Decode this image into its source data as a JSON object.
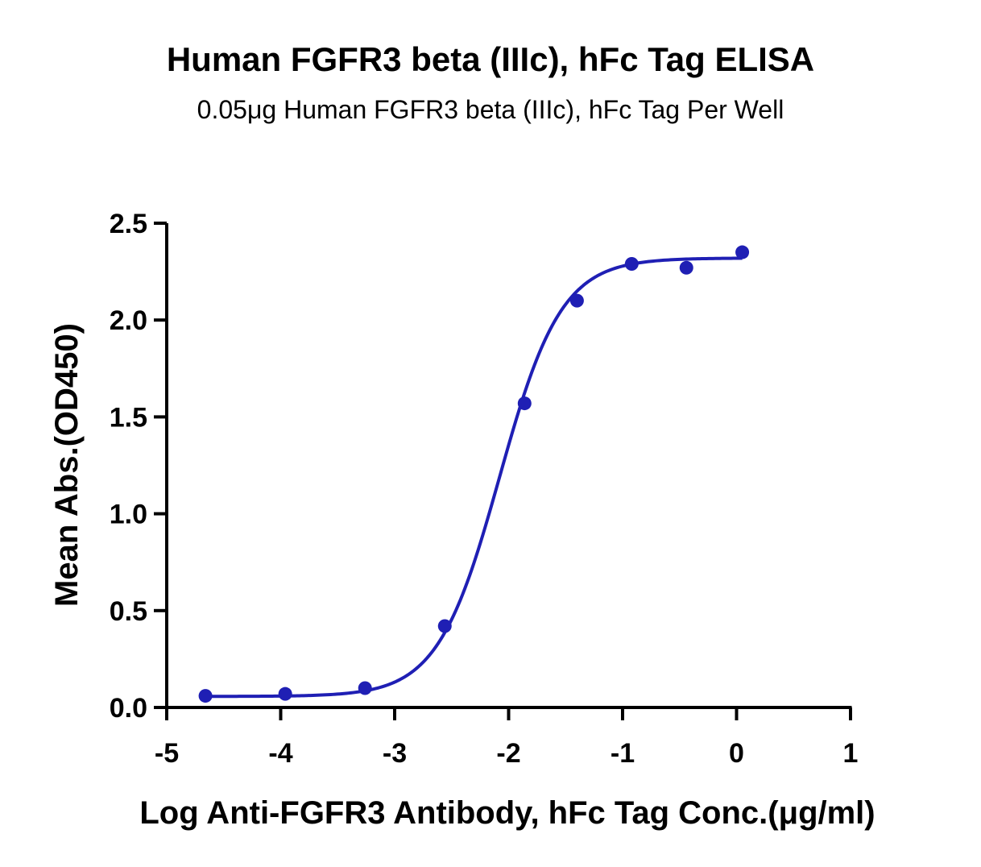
{
  "chart_data": {
    "type": "scatter",
    "title": "Human FGFR3 beta (IIIc), hFc Tag ELISA",
    "subtitle": "0.05μg Human FGFR3 beta (IIIc), hFc Tag Per Well",
    "xlabel": "Log  Anti-FGFR3 Antibody, hFc Tag Conc.(μg/ml)",
    "ylabel": "Mean Abs.(OD450)",
    "xlim": [
      -5,
      1
    ],
    "ylim": [
      0,
      2.5
    ],
    "xticks": [
      "-5",
      "-4",
      "-3",
      "-2",
      "-1",
      "0",
      "1"
    ],
    "yticks": [
      "0.0",
      "0.5",
      "1.0",
      "1.5",
      "2.0",
      "2.5"
    ],
    "grid": false,
    "color": "#1f1fb4",
    "series": [
      {
        "x": [
          -4.66,
          -3.96,
          -3.26,
          -2.56,
          -1.86,
          -1.4,
          -0.92,
          -0.44,
          0.05
        ],
        "y": [
          0.06,
          0.07,
          0.1,
          0.42,
          1.57,
          2.1,
          2.29,
          2.27,
          2.35
        ]
      }
    ],
    "fit_curve": {
      "model": "4PL",
      "bottom": 0.057,
      "top": 2.32,
      "log_ec50": -2.08,
      "hill_slope": 1.6,
      "x_range": [
        -4.66,
        0.05
      ]
    }
  }
}
